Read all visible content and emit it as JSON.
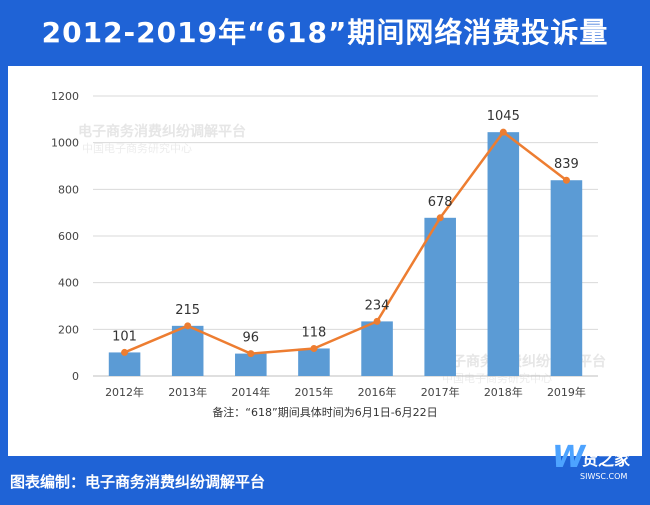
{
  "header": {
    "title": "2012-2019年“618”期间网络消费投诉量"
  },
  "footer": {
    "credit": "图表编制：电子商务消费纠纷调解平台"
  },
  "note": "备注：“618”期间具体时间为6月1日-6月22日",
  "watermark": {
    "line1": "电子商务消费纠纷调解平台",
    "line2": "中国电子商务研究中心"
  },
  "logo": {
    "text": "货之家",
    "url": "SIWSC.COM"
  },
  "colors": {
    "header_bg": "#1f63d6",
    "bar": "#5b9bd5",
    "line": "#ed7d31",
    "grid": "#d9d9d9"
  },
  "chart_data": {
    "type": "bar",
    "categories": [
      "2012年",
      "2013年",
      "2014年",
      "2015年",
      "2016年",
      "2017年",
      "2018年",
      "2019年"
    ],
    "values": [
      101,
      215,
      96,
      118,
      234,
      678,
      1045,
      839
    ],
    "overlay_line": [
      101,
      215,
      96,
      118,
      234,
      678,
      1045,
      839
    ],
    "data_labels": [
      "101",
      "215",
      "96",
      "118",
      "234",
      "678",
      "1045",
      "839"
    ],
    "yticks": [
      "0",
      "200",
      "400",
      "600",
      "800",
      "1000",
      "1200"
    ],
    "ylim": [
      0,
      1200
    ],
    "title": "2012-2019年“618”期间网络消费投诉量",
    "grid": true
  }
}
